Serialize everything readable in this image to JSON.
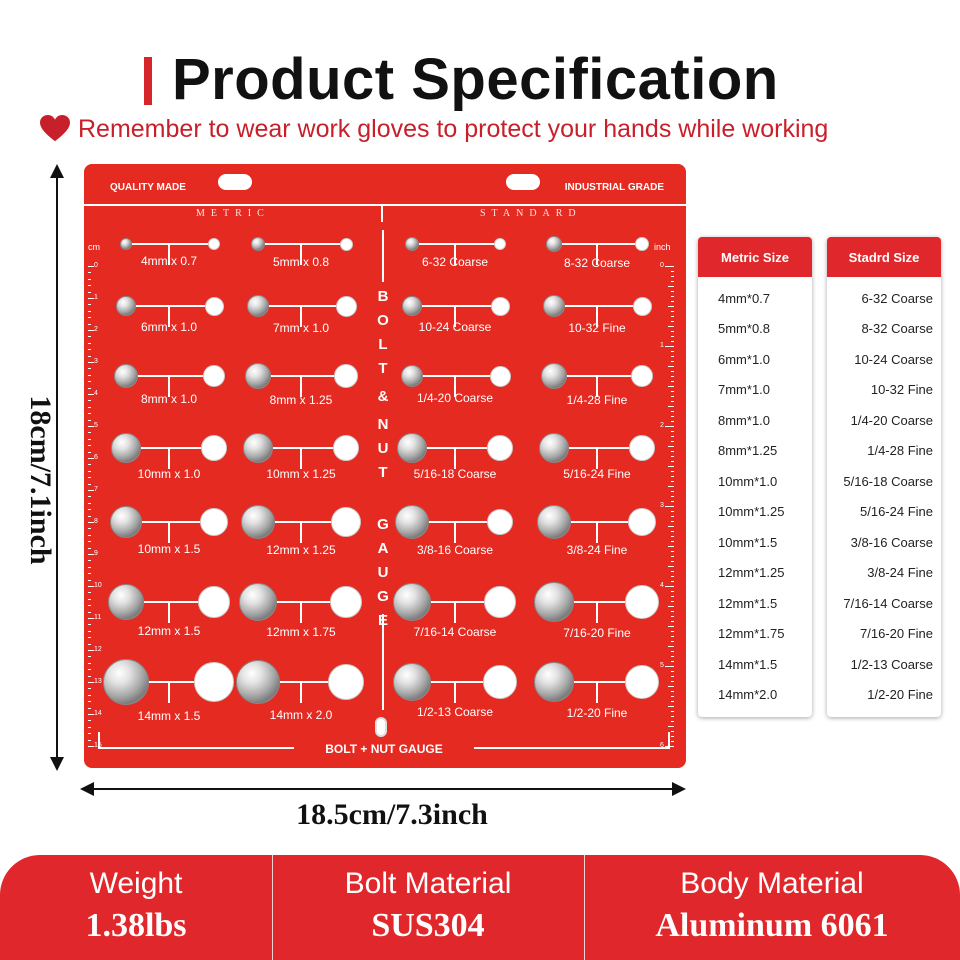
{
  "header": {
    "title": "Product Specification",
    "subtitle": "Remember to wear work gloves to protect your hands while working"
  },
  "colors": {
    "accent": "#e0282c",
    "board": "#e52a22",
    "text": "#111111"
  },
  "icons": [
    "heart-icon"
  ],
  "board": {
    "left_label": "QUALITY MADE",
    "right_label": "INDUSTRIAL GRADE",
    "metric_label": "METRIC",
    "standard_label": "STANDARD",
    "vertical_text": [
      "B",
      "O",
      "L",
      "T",
      "&",
      "N",
      "U",
      "T",
      "G",
      "A",
      "U",
      "G",
      "E"
    ],
    "bottom_label": "BOLT + NUT GAUGE",
    "ruler_left_unit": "cm",
    "ruler_left_numbers": [
      "0",
      "1",
      "2",
      "3",
      "4",
      "5",
      "6",
      "7",
      "8",
      "9",
      "10",
      "11",
      "12",
      "13",
      "14",
      "15"
    ],
    "ruler_right_unit": "inch",
    "ruler_right_numbers": [
      "0",
      "1",
      "2",
      "3",
      "4",
      "5",
      "6"
    ],
    "metric_cells": [
      "4mm x 0.7",
      "5mm x 0.8",
      "6mm x 1.0",
      "7mm x 1.0",
      "8mm x 1.0",
      "8mm x 1.25",
      "10mm x 1.0",
      "10mm x 1.25",
      "10mm x 1.5",
      "12mm x 1.25",
      "12mm x 1.5",
      "12mm x 1.75",
      "14mm x 1.5",
      "14mm x 2.0"
    ],
    "standard_cells": [
      "6-32 Coarse",
      "8-32 Coarse",
      "10-24 Coarse",
      "10-32 Fine",
      "1/4-20 Coarse",
      "1/4-28 Fine",
      "5/16-18 Coarse",
      "5/16-24 Fine",
      "3/8-16 Coarse",
      "3/8-24 Fine",
      "7/16-14 Coarse",
      "7/16-20 Fine",
      "1/2-13 Coarse",
      "1/2-20 Fine"
    ]
  },
  "dimensions": {
    "height": "18cm/7.1inch",
    "width": "18.5cm/7.3inch"
  },
  "metric_table": {
    "header": "Metric Size",
    "rows": [
      "4mm*0.7",
      "5mm*0.8",
      "6mm*1.0",
      "7mm*1.0",
      "8mm*1.0",
      "8mm*1.25",
      "10mm*1.0",
      "10mm*1.25",
      "10mm*1.5",
      "12mm*1.25",
      "12mm*1.5",
      "12mm*1.75",
      "14mm*1.5",
      "14mm*2.0"
    ]
  },
  "standard_table": {
    "header": "Stadrd Size",
    "rows": [
      "6-32 Coarse",
      "8-32 Coarse",
      "10-24 Coarse",
      "10-32 Fine",
      "1/4-20 Coarse",
      "1/4-28 Fine",
      "5/16-18 Coarse",
      "5/16-24 Fine",
      "3/8-16 Coarse",
      "3/8-24 Fine",
      "7/16-14 Coarse",
      "7/16-20 Fine",
      "1/2-13 Coarse",
      "1/2-20 Fine"
    ]
  },
  "footer": [
    {
      "label": "Weight",
      "value": "1.38lbs"
    },
    {
      "label": "Bolt Material",
      "value": "SUS304"
    },
    {
      "label": "Body Material",
      "value": "Aluminum 6061"
    }
  ]
}
